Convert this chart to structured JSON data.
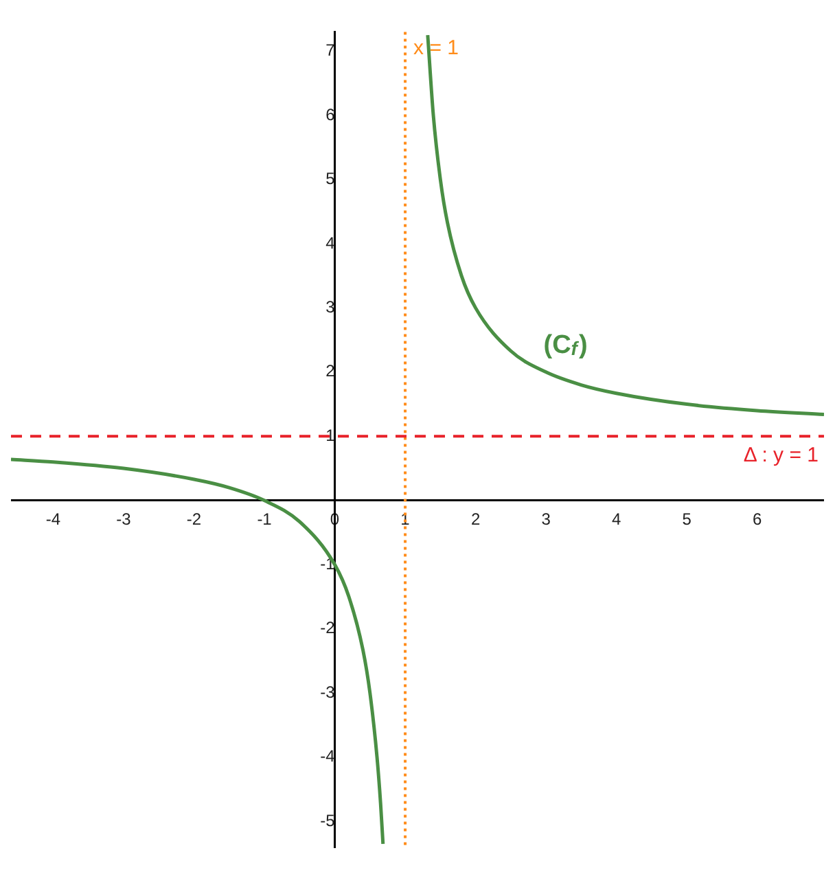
{
  "chart_data": {
    "type": "line",
    "xlim": [
      -4.6,
      6.95
    ],
    "ylim": [
      -5.4,
      7.3
    ],
    "xticks": [
      -4,
      -3,
      -2,
      -1,
      0,
      1,
      2,
      3,
      4,
      5,
      6
    ],
    "yticks": [
      -5,
      -4,
      -3,
      -2,
      -1,
      1,
      2,
      3,
      4,
      5,
      6,
      7
    ],
    "grid": false,
    "legend": false,
    "marker": "none",
    "line_style": "solid",
    "series": [
      {
        "color": "#4a8f44",
        "x": [
          -4.6,
          -4,
          -3,
          -2,
          -1.5,
          -1,
          -0.5,
          0,
          0.2,
          0.4,
          0.5,
          0.6,
          0.65,
          0.685
        ],
        "values": [
          0.64,
          0.6,
          0.5,
          0.33,
          0.2,
          0,
          -0.33,
          -1,
          -1.5,
          -2.33,
          -3,
          -4,
          -4.71,
          -5.35
        ]
      },
      {
        "color": "#4a8f44",
        "x": [
          1.32,
          1.4,
          1.5,
          1.6,
          1.8,
          2,
          2.5,
          3,
          3.5,
          4,
          5,
          6,
          6.95
        ],
        "values": [
          7.25,
          6,
          5,
          4.33,
          3.5,
          3,
          2.33,
          2,
          1.8,
          1.67,
          1.5,
          1.4,
          1.34
        ]
      }
    ],
    "ref_lines": [
      {
        "axis": "x",
        "value": 1,
        "label": "x = 1",
        "color": "#ff8c1a",
        "line_style": "dotted"
      },
      {
        "axis": "y",
        "value": 1,
        "label": "Δ : y = 1",
        "color": "#e8222a",
        "line_style": "dashed"
      }
    ],
    "annotations": [
      "(C$_{f}$)"
    ]
  }
}
